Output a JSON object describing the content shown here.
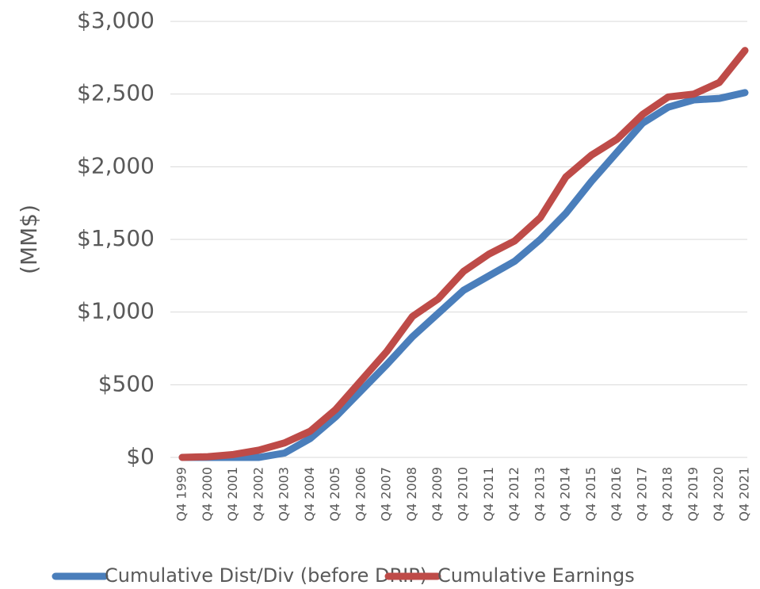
{
  "chart_data": {
    "type": "line",
    "y_label": "(MM$)",
    "categories": [
      "Q4 1999",
      "Q4 2000",
      "Q4 2001",
      "Q4 2002",
      "Q4 2003",
      "Q4 2004",
      "Q4 2005",
      "Q4 2006",
      "Q4 2007",
      "Q4 2008",
      "Q4 2009",
      "Q4 2010",
      "Q4 2011",
      "Q4 2012",
      "Q4 2013",
      "Q4 2014",
      "Q4 2015",
      "Q4 2016",
      "Q4 2017",
      "Q4 2018",
      "Q4 2019",
      "Q4 2020",
      "Q4 2021"
    ],
    "series": [
      {
        "name": "Cumulative Dist/Div (before DRIP)",
        "color": "#4a7ebb",
        "values": [
          0,
          0,
          0,
          0,
          30,
          130,
          280,
          460,
          640,
          830,
          990,
          1150,
          1250,
          1350,
          1500,
          1680,
          1900,
          2100,
          2300,
          2410,
          2460,
          2470,
          2510
        ]
      },
      {
        "name": "Cumulative Earnings",
        "color": "#be4b48",
        "values": [
          0,
          5,
          20,
          50,
          100,
          180,
          330,
          530,
          730,
          970,
          1090,
          1280,
          1400,
          1490,
          1650,
          1930,
          2080,
          2190,
          2360,
          2480,
          2500,
          2580,
          2800
        ]
      }
    ],
    "ylim": [
      0,
      3000
    ],
    "yticks": [
      {
        "value": 0,
        "label": "$0"
      },
      {
        "value": 500,
        "label": "$500"
      },
      {
        "value": 1000,
        "label": "$1,000"
      },
      {
        "value": 1500,
        "label": "$1,500"
      },
      {
        "value": 2000,
        "label": "$2,000"
      },
      {
        "value": 2500,
        "label": "$2,500"
      },
      {
        "value": 3000,
        "label": "$3,000"
      }
    ],
    "grid": true
  }
}
